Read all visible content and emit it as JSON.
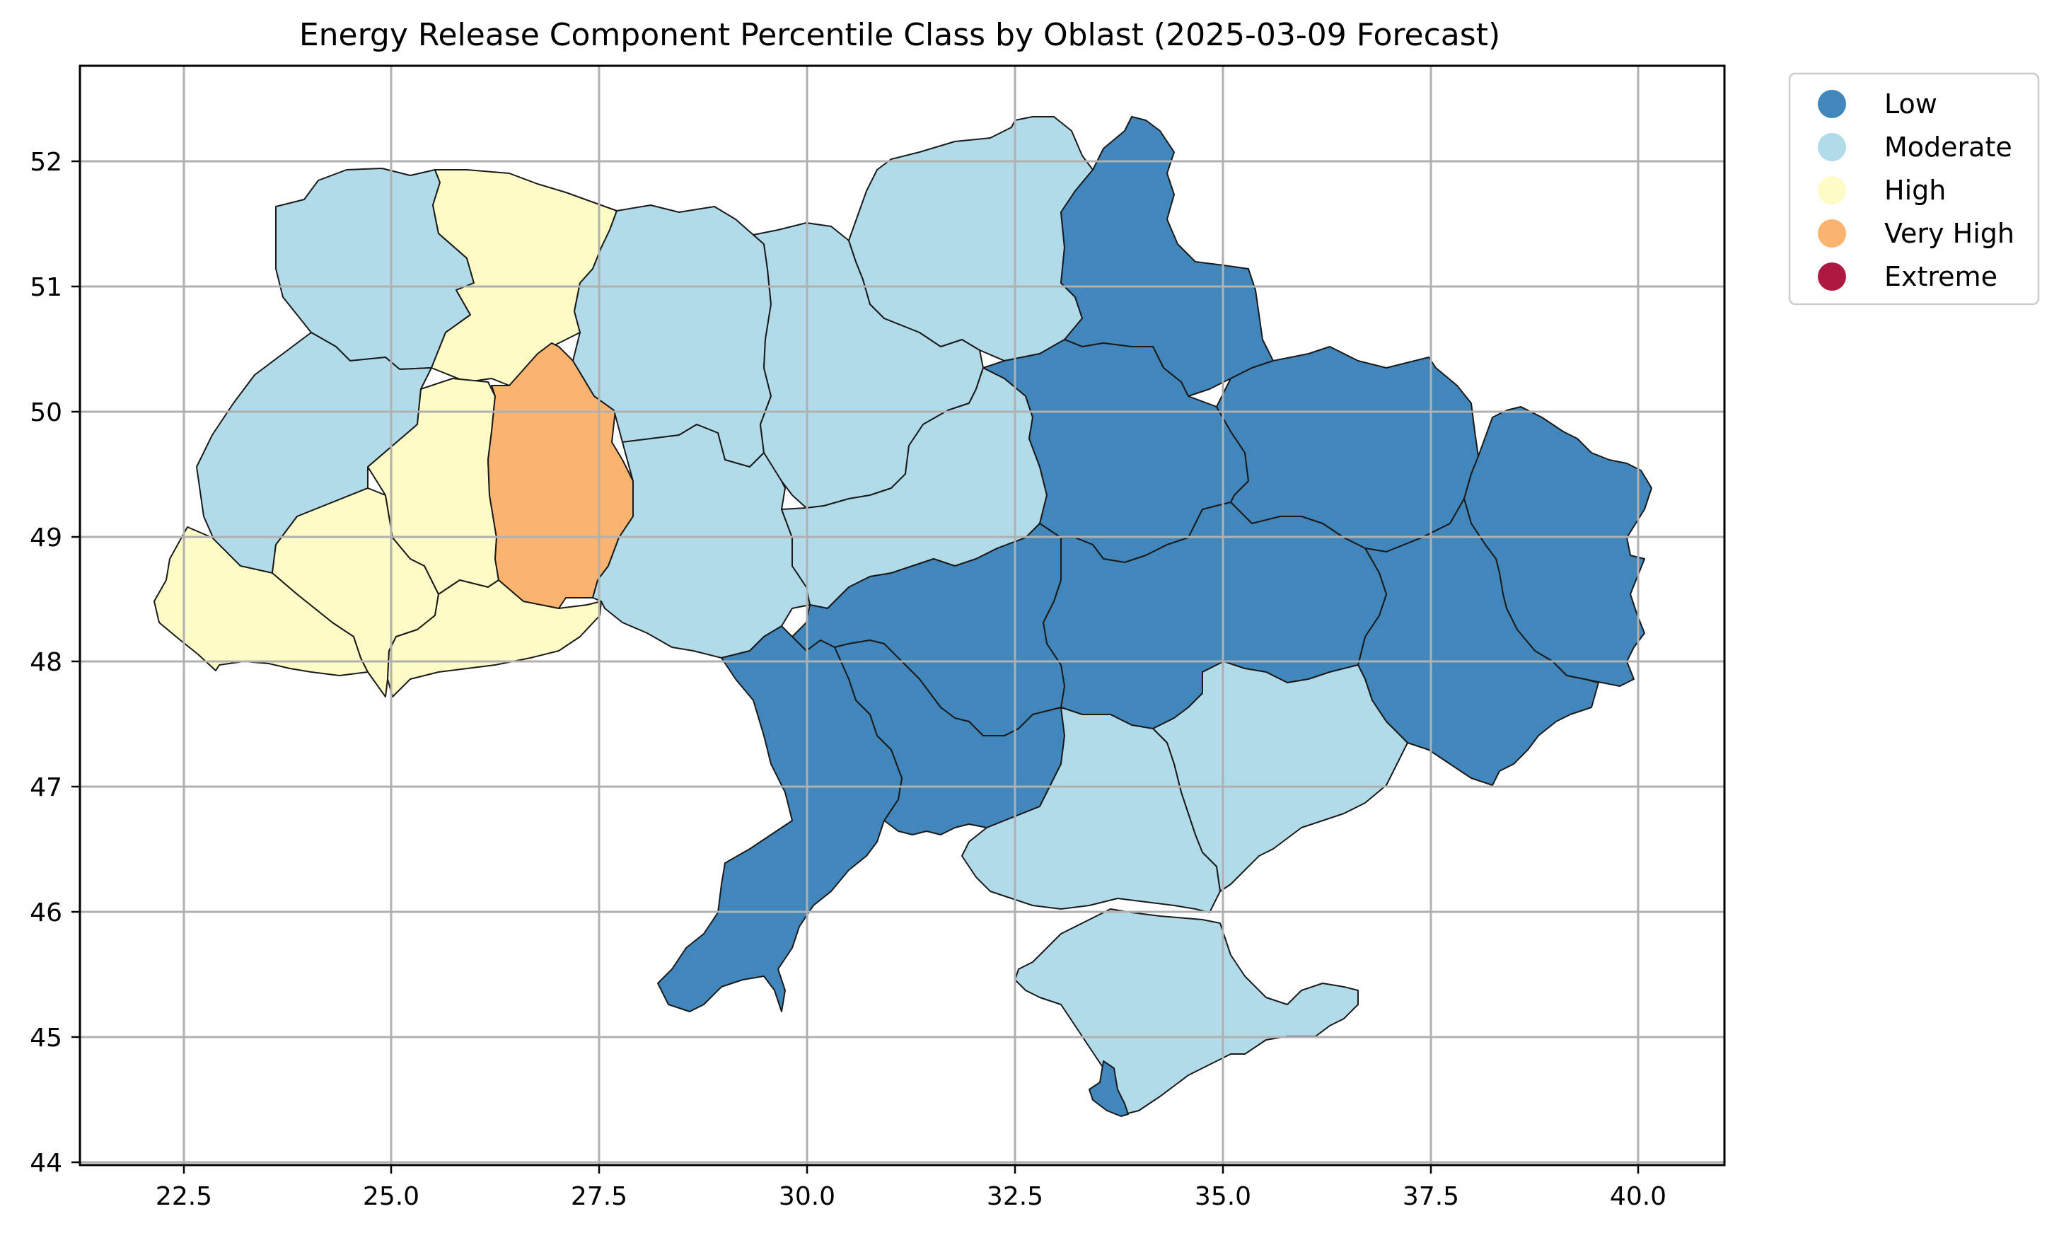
{
  "title": "Energy Release Component Percentile Class by Oblast (2025-03-09 Forecast)",
  "x_ticks": [
    "22.5",
    "25.0",
    "27.5",
    "30.0",
    "32.5",
    "35.0",
    "37.5",
    "40.0"
  ],
  "y_ticks": [
    "44",
    "45",
    "46",
    "47",
    "48",
    "49",
    "50",
    "51",
    "52"
  ],
  "legend": [
    {
      "label": "Low",
      "color": "#4187bc"
    },
    {
      "label": "Moderate",
      "color": "#b2dbea"
    },
    {
      "label": "High",
      "color": "#fefcc6"
    },
    {
      "label": "Very High",
      "color": "#fbb46f"
    },
    {
      "label": "Extreme",
      "color": "#ae1940"
    }
  ],
  "map": {
    "extent": {
      "lon": [
        21.3,
        41.0
      ],
      "lat": [
        44.0,
        52.8
      ]
    },
    "regions": [
      {
        "name": "Volyn",
        "class": "Moderate"
      },
      {
        "name": "Rivne",
        "class": "High"
      },
      {
        "name": "Lviv",
        "class": "Moderate"
      },
      {
        "name": "Zakarpattia",
        "class": "High"
      },
      {
        "name": "Ivano-Frankivsk",
        "class": "High"
      },
      {
        "name": "Ternopil",
        "class": "High"
      },
      {
        "name": "Chernivtsi",
        "class": "High"
      },
      {
        "name": "Khmelnytskyi",
        "class": "Very High"
      },
      {
        "name": "Zhytomyr",
        "class": "Moderate"
      },
      {
        "name": "Vinnytsia",
        "class": "Moderate"
      },
      {
        "name": "Kyiv",
        "class": "Moderate"
      },
      {
        "name": "Chernihiv",
        "class": "Moderate"
      },
      {
        "name": "Cherkasy",
        "class": "Moderate"
      },
      {
        "name": "Sumy",
        "class": "Low"
      },
      {
        "name": "Poltava",
        "class": "Low"
      },
      {
        "name": "Kharkiv",
        "class": "Low"
      },
      {
        "name": "Luhansk",
        "class": "Low"
      },
      {
        "name": "Donetsk",
        "class": "Low"
      },
      {
        "name": "Dnipropetrovsk",
        "class": "Low"
      },
      {
        "name": "Kirovohrad",
        "class": "Low"
      },
      {
        "name": "Mykolaiv",
        "class": "Low"
      },
      {
        "name": "Odesa",
        "class": "Low"
      },
      {
        "name": "Zaporizhzhia",
        "class": "Moderate"
      },
      {
        "name": "Kherson",
        "class": "Moderate"
      },
      {
        "name": "Crimea",
        "class": "Moderate"
      },
      {
        "name": "Sevastopol",
        "class": "Low"
      }
    ]
  }
}
